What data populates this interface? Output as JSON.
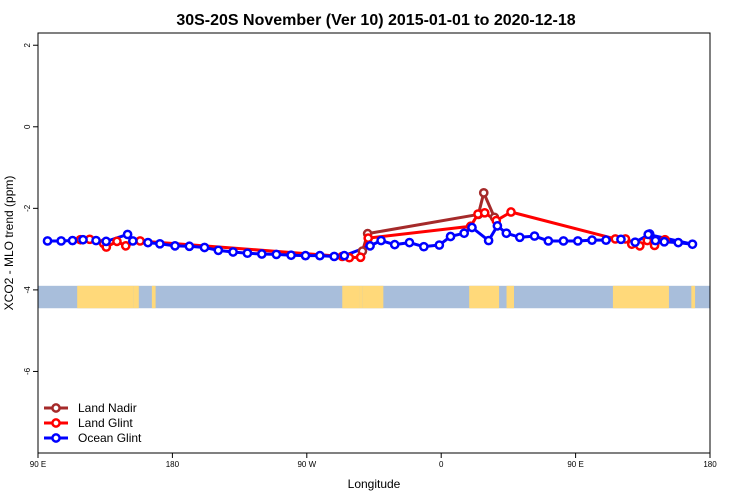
{
  "chart_data": {
    "type": "line",
    "title": "30S-20S November (Ver 10)   2015-01-01 to 2020-12-18",
    "xlabel": "Longitude",
    "ylabel": "XCO2 - MLO trend (ppm)",
    "xlim": [
      90,
      450
    ],
    "ylim": [
      -8,
      2.3
    ],
    "x_ticks": [
      {
        "value": 90,
        "label": "90 E"
      },
      {
        "value": 162,
        "label": "180"
      },
      {
        "value": 234,
        "label": "90 W"
      },
      {
        "value": 306,
        "label": "0"
      },
      {
        "value": 378,
        "label": "90 E"
      },
      {
        "value": 450,
        "label": "180"
      }
    ],
    "y_ticks": [
      {
        "value": 2,
        "label": "2"
      },
      {
        "value": 0,
        "label": "0"
      },
      {
        "value": -2,
        "label": "-2"
      },
      {
        "value": -4,
        "label": "-4"
      },
      {
        "value": -6,
        "label": "-6"
      }
    ],
    "land_band": {
      "y_top": -3.9,
      "y_bottom": -4.45,
      "ocean_color": "#a8bedb",
      "land_color": "#ffd97a"
    },
    "land_segments": [
      [
        111,
        141
      ],
      [
        141,
        144
      ],
      [
        151,
        153
      ],
      [
        253,
        262
      ],
      [
        262,
        264
      ],
      [
        264,
        270
      ],
      [
        270,
        275
      ],
      [
        321,
        337
      ],
      [
        341,
        345
      ],
      [
        398,
        428
      ],
      [
        440,
        442
      ]
    ],
    "series": [
      {
        "name": "Land Nadir",
        "color": "#a52a2a",
        "points": [
          [
            263.8,
            -3.05
          ],
          [
            266.6,
            -2.62
          ],
          [
            325.9,
            -2.15
          ],
          [
            328.8,
            -1.62
          ],
          [
            334.5,
            -2.22
          ]
        ]
      },
      {
        "name": "Land Glint",
        "color": "#ff0000",
        "points": [
          [
            112.7,
            -2.77
          ],
          [
            117.7,
            -2.76
          ],
          [
            125.1,
            -2.86
          ],
          [
            126.6,
            -2.95
          ],
          [
            132.3,
            -2.81
          ],
          [
            137.0,
            -2.92
          ],
          [
            144.7,
            -2.8
          ],
          [
            253.0,
            -3.18
          ],
          [
            256.8,
            -3.21
          ],
          [
            262.8,
            -3.2
          ],
          [
            266.9,
            -2.73
          ],
          [
            321.8,
            -2.44
          ],
          [
            325.7,
            -2.14
          ],
          [
            329.3,
            -2.11
          ],
          [
            335.5,
            -2.3
          ],
          [
            343.4,
            -2.09
          ],
          [
            399.3,
            -2.75
          ],
          [
            404.7,
            -2.75
          ],
          [
            408.1,
            -2.88
          ],
          [
            412.4,
            -2.92
          ],
          [
            416.4,
            -2.79
          ],
          [
            420.3,
            -2.91
          ],
          [
            425.9,
            -2.77
          ]
        ]
      },
      {
        "name": "Ocean Glint",
        "color": "#0000ff",
        "points": [
          [
            95.1,
            -2.8
          ],
          [
            102.4,
            -2.8
          ],
          [
            108.5,
            -2.79
          ],
          [
            114.1,
            -2.77
          ],
          [
            121.1,
            -2.79
          ],
          [
            126.5,
            -2.81
          ],
          [
            138.0,
            -2.64
          ],
          [
            140.8,
            -2.8
          ],
          [
            148.9,
            -2.84
          ],
          [
            155.3,
            -2.87
          ],
          [
            163.4,
            -2.92
          ],
          [
            171.1,
            -2.93
          ],
          [
            179.2,
            -2.96
          ],
          [
            186.6,
            -3.03
          ],
          [
            194.5,
            -3.07
          ],
          [
            202.2,
            -3.1
          ],
          [
            209.9,
            -3.12
          ],
          [
            217.7,
            -3.13
          ],
          [
            225.6,
            -3.15
          ],
          [
            233.3,
            -3.16
          ],
          [
            241.0,
            -3.16
          ],
          [
            248.7,
            -3.18
          ],
          [
            254.1,
            -3.16
          ],
          [
            267.9,
            -2.92
          ],
          [
            273.8,
            -2.79
          ],
          [
            281.1,
            -2.89
          ],
          [
            289.0,
            -2.84
          ],
          [
            296.7,
            -2.94
          ],
          [
            305.0,
            -2.9
          ],
          [
            311.0,
            -2.69
          ],
          [
            318.3,
            -2.61
          ],
          [
            322.5,
            -2.47
          ],
          [
            331.4,
            -2.79
          ],
          [
            336.1,
            -2.43
          ],
          [
            340.9,
            -2.61
          ],
          [
            348.1,
            -2.71
          ],
          [
            356.0,
            -2.68
          ],
          [
            363.4,
            -2.8
          ],
          [
            371.5,
            -2.8
          ],
          [
            379.2,
            -2.8
          ],
          [
            386.8,
            -2.78
          ],
          [
            394.3,
            -2.78
          ],
          [
            402.3,
            -2.76
          ],
          [
            409.9,
            -2.83
          ],
          [
            417.7,
            -2.63
          ],
          [
            425.5,
            -2.82
          ],
          [
            433.0,
            -2.84
          ],
          [
            440.6,
            -2.88
          ],
          [
            416.9,
            -2.64
          ],
          [
            420.8,
            -2.79
          ]
        ]
      }
    ],
    "legend_position": "bottom-left",
    "grid": false
  }
}
